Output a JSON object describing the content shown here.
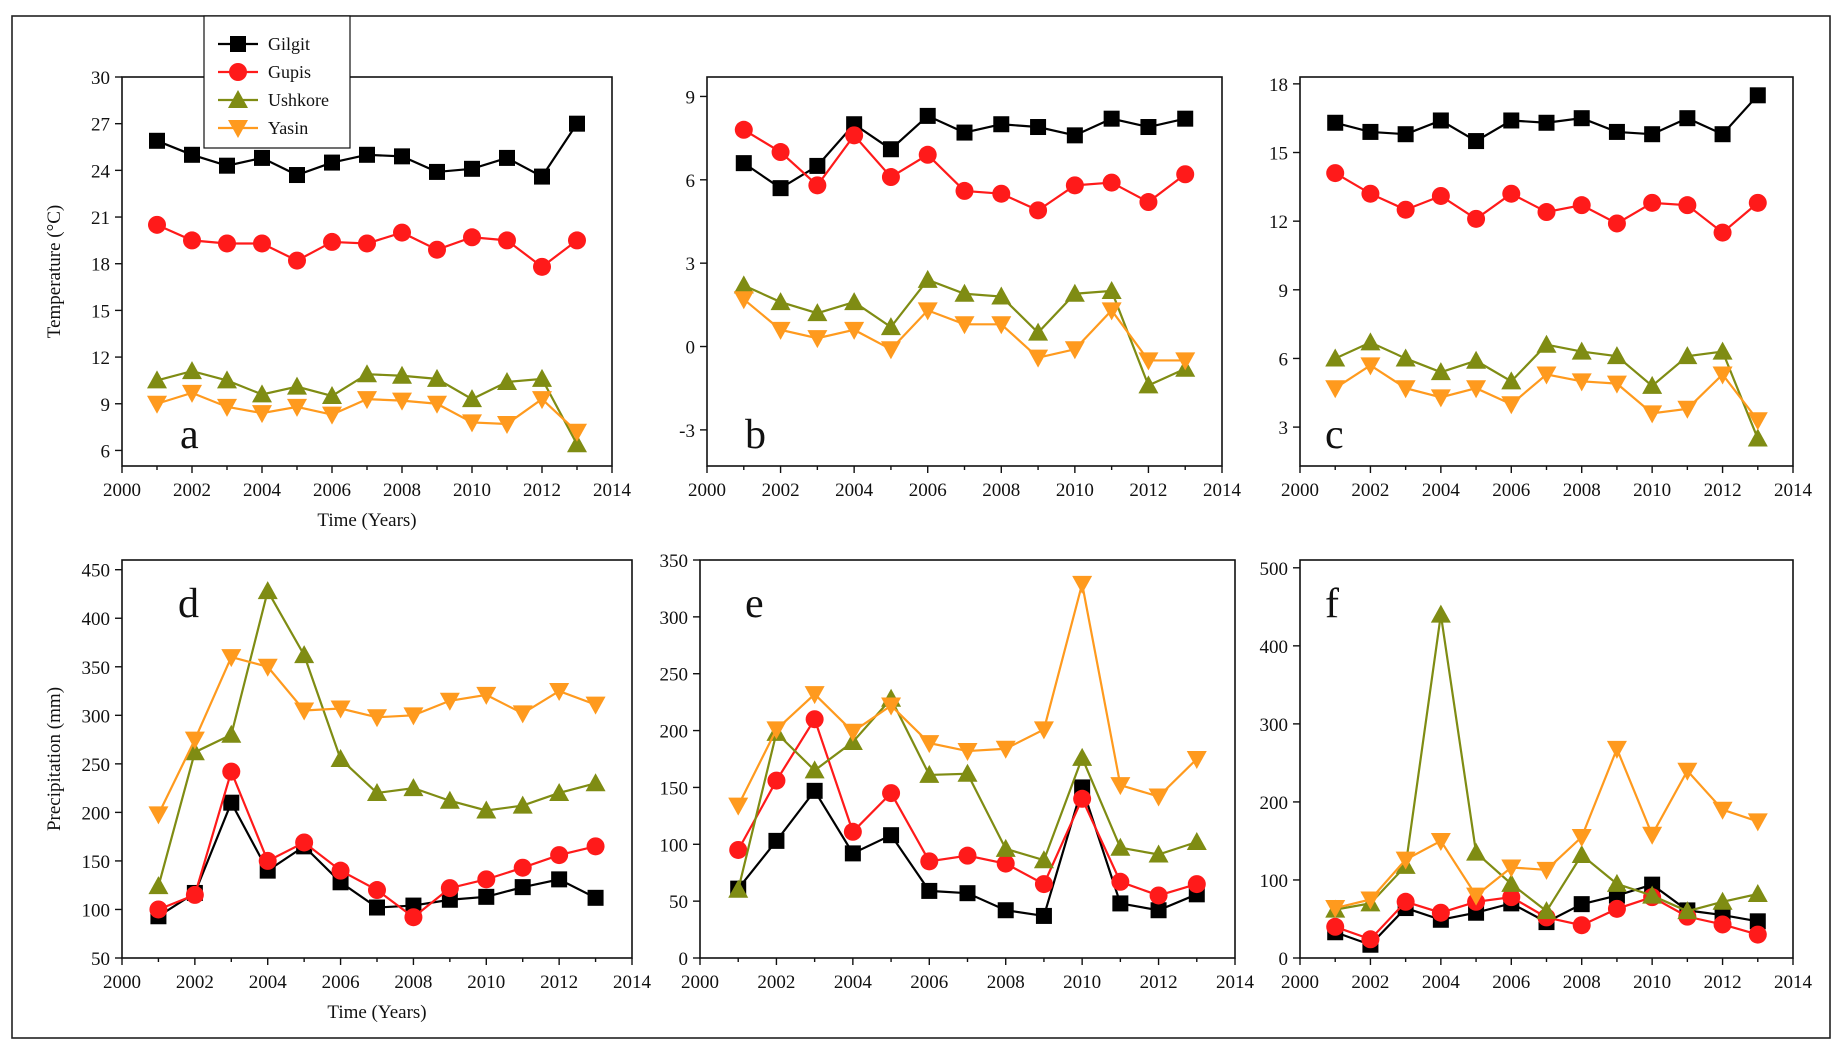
{
  "colors": {
    "Gilgit": "#000000",
    "Gupis": "#ff1a1a",
    "Ushkore": "#7f8c13",
    "Yasin": "#ff9a1e"
  },
  "markers": {
    "Gilgit": "square",
    "Gupis": "circle",
    "Ushkore": "triangle-up",
    "Yasin": "triangle-down"
  },
  "legend": [
    "Gilgit",
    "Gupis",
    "Ushkore",
    "Yasin"
  ],
  "chart_data": [
    {
      "id": "a",
      "type": "line",
      "panel_label": "a",
      "xlabel": "Time (Years)",
      "ylabel": "Temperature (°C)",
      "xlim": [
        2000,
        2014
      ],
      "ylim": [
        5,
        30
      ],
      "xticks": [
        "2000",
        "2002",
        "2004",
        "2006",
        "2008",
        "2010",
        "2012",
        "2014"
      ],
      "yticks": [
        "6",
        "9",
        "12",
        "15",
        "18",
        "21",
        "24",
        "27",
        "30"
      ],
      "x": [
        2001,
        2002,
        2003,
        2004,
        2005,
        2006,
        2007,
        2008,
        2009,
        2010,
        2011,
        2012,
        2013
      ],
      "series": [
        {
          "name": "Gilgit",
          "values": [
            25.9,
            25.0,
            24.3,
            24.8,
            23.7,
            24.5,
            25.0,
            24.9,
            23.9,
            24.1,
            24.8,
            23.6,
            27.0
          ]
        },
        {
          "name": "Gupis",
          "values": [
            20.5,
            19.5,
            19.3,
            19.3,
            18.2,
            19.4,
            19.3,
            20.0,
            18.9,
            19.7,
            19.5,
            17.8,
            19.5
          ]
        },
        {
          "name": "Ushkore",
          "values": [
            10.5,
            11.1,
            10.5,
            9.6,
            10.1,
            9.5,
            10.9,
            10.8,
            10.6,
            9.3,
            10.4,
            10.6,
            6.4
          ]
        },
        {
          "name": "Yasin",
          "values": [
            9.0,
            9.7,
            8.8,
            8.4,
            8.8,
            8.3,
            9.3,
            9.2,
            9.0,
            7.8,
            7.7,
            9.3,
            7.2
          ]
        }
      ]
    },
    {
      "id": "b",
      "type": "line",
      "panel_label": "b",
      "xlabel": "",
      "ylabel": "",
      "xlim": [
        2000,
        2014
      ],
      "ylim": [
        -4.3,
        9.7
      ],
      "xticks": [
        "2000",
        "2002",
        "2004",
        "2006",
        "2008",
        "2010",
        "2012",
        "2014"
      ],
      "yticks": [
        "-3",
        "0",
        "3",
        "6",
        "9"
      ],
      "x": [
        2001,
        2002,
        2003,
        2004,
        2005,
        2006,
        2007,
        2008,
        2009,
        2010,
        2011,
        2012,
        2013
      ],
      "series": [
        {
          "name": "Gilgit",
          "values": [
            6.6,
            5.7,
            6.5,
            8.0,
            7.1,
            8.3,
            7.7,
            8.0,
            7.9,
            7.6,
            8.2,
            7.9,
            8.2
          ]
        },
        {
          "name": "Gupis",
          "values": [
            7.8,
            7.0,
            5.8,
            7.6,
            6.1,
            6.9,
            5.6,
            5.5,
            4.9,
            5.8,
            5.9,
            5.2,
            6.2
          ]
        },
        {
          "name": "Ushkore",
          "values": [
            2.2,
            1.6,
            1.2,
            1.6,
            0.7,
            2.4,
            1.9,
            1.8,
            0.5,
            1.9,
            2.0,
            -1.4,
            -0.8
          ]
        },
        {
          "name": "Yasin",
          "values": [
            1.7,
            0.6,
            0.3,
            0.6,
            -0.1,
            1.3,
            0.8,
            0.8,
            -0.4,
            -0.1,
            1.3,
            -0.5,
            -0.5
          ]
        }
      ]
    },
    {
      "id": "c",
      "type": "line",
      "panel_label": "c",
      "xlabel": "",
      "ylabel": "",
      "xlim": [
        2000,
        2014
      ],
      "ylim": [
        1.3,
        18.3
      ],
      "xticks": [
        "2000",
        "2002",
        "2004",
        "2006",
        "2008",
        "2010",
        "2012",
        "2014"
      ],
      "yticks": [
        "3",
        "6",
        "9",
        "12",
        "15",
        "18"
      ],
      "x": [
        2001,
        2002,
        2003,
        2004,
        2005,
        2006,
        2007,
        2008,
        2009,
        2010,
        2011,
        2012,
        2013
      ],
      "series": [
        {
          "name": "Gilgit",
          "values": [
            16.3,
            15.9,
            15.8,
            16.4,
            15.5,
            16.4,
            16.3,
            16.5,
            15.9,
            15.8,
            16.5,
            15.8,
            17.5
          ]
        },
        {
          "name": "Gupis",
          "values": [
            14.1,
            13.2,
            12.5,
            13.1,
            12.1,
            13.2,
            12.4,
            12.7,
            11.9,
            12.8,
            12.7,
            11.5,
            12.8
          ]
        },
        {
          "name": "Ushkore",
          "values": [
            6.0,
            6.7,
            6.0,
            5.4,
            5.9,
            5.0,
            6.6,
            6.3,
            6.1,
            4.8,
            6.1,
            6.3,
            2.5
          ]
        },
        {
          "name": "Yasin",
          "values": [
            4.7,
            5.7,
            4.7,
            4.3,
            4.7,
            4.0,
            5.3,
            5.0,
            4.9,
            3.6,
            3.8,
            5.3,
            3.3
          ]
        }
      ]
    },
    {
      "id": "d",
      "type": "line",
      "panel_label": "d",
      "xlabel": "Time (Years)",
      "ylabel": "Precipitation (mm)",
      "xlim": [
        2000,
        2014
      ],
      "ylim": [
        50,
        460
      ],
      "xticks": [
        "2000",
        "2002",
        "2004",
        "2006",
        "2008",
        "2010",
        "2012",
        "2014"
      ],
      "yticks": [
        "50",
        "100",
        "150",
        "200",
        "250",
        "300",
        "350",
        "400",
        "450"
      ],
      "x": [
        2001,
        2002,
        2003,
        2004,
        2005,
        2006,
        2007,
        2008,
        2009,
        2010,
        2011,
        2012,
        2013
      ],
      "series": [
        {
          "name": "Gilgit",
          "values": [
            93,
            117,
            210,
            140,
            165,
            128,
            102,
            104,
            110,
            113,
            123,
            131,
            112
          ]
        },
        {
          "name": "Gupis",
          "values": [
            100,
            115,
            242,
            150,
            169,
            140,
            120,
            92,
            122,
            131,
            143,
            156,
            165
          ]
        },
        {
          "name": "Ushkore",
          "values": [
            124,
            262,
            280,
            428,
            362,
            255,
            220,
            225,
            212,
            202,
            207,
            220,
            230
          ]
        },
        {
          "name": "Yasin",
          "values": [
            198,
            275,
            360,
            350,
            305,
            307,
            298,
            300,
            315,
            321,
            302,
            325,
            311
          ]
        }
      ]
    },
    {
      "id": "e",
      "type": "line",
      "panel_label": "e",
      "xlabel": "",
      "ylabel": "",
      "xlim": [
        2000,
        2014
      ],
      "ylim": [
        0,
        350
      ],
      "xticks": [
        "2000",
        "2002",
        "2004",
        "2006",
        "2008",
        "2010",
        "2012",
        "2014"
      ],
      "yticks": [
        "0",
        "50",
        "100",
        "150",
        "200",
        "250",
        "300",
        "350"
      ],
      "x": [
        2001,
        2002,
        2003,
        2004,
        2005,
        2006,
        2007,
        2008,
        2009,
        2010,
        2011,
        2012,
        2013
      ],
      "series": [
        {
          "name": "Gilgit",
          "values": [
            61,
            103,
            147,
            92,
            108,
            59,
            57,
            42,
            37,
            150,
            48,
            42,
            56
          ]
        },
        {
          "name": "Gupis",
          "values": [
            95,
            156,
            210,
            111,
            145,
            85,
            90,
            83,
            65,
            140,
            67,
            55,
            65
          ]
        },
        {
          "name": "Ushkore",
          "values": [
            60,
            198,
            165,
            190,
            228,
            161,
            162,
            96,
            86,
            176,
            97,
            91,
            102
          ]
        },
        {
          "name": "Yasin",
          "values": [
            134,
            201,
            232,
            199,
            222,
            189,
            182,
            184,
            201,
            329,
            152,
            142,
            175
          ]
        }
      ]
    },
    {
      "id": "f",
      "type": "line",
      "panel_label": "f",
      "xlabel": "",
      "ylabel": "",
      "xlim": [
        2000,
        2014
      ],
      "ylim": [
        0,
        510
      ],
      "xticks": [
        "2000",
        "2002",
        "2004",
        "2006",
        "2008",
        "2010",
        "2012",
        "2014"
      ],
      "yticks": [
        "0",
        "100",
        "200",
        "300",
        "400",
        "500"
      ],
      "x": [
        2001,
        2002,
        2003,
        2004,
        2005,
        2006,
        2007,
        2008,
        2009,
        2010,
        2011,
        2012,
        2013
      ],
      "series": [
        {
          "name": "Gilgit",
          "values": [
            33,
            17,
            64,
            49,
            58,
            70,
            46,
            69,
            80,
            94,
            61,
            55,
            47
          ]
        },
        {
          "name": "Gupis",
          "values": [
            40,
            24,
            72,
            58,
            72,
            78,
            52,
            42,
            63,
            78,
            53,
            43,
            30
          ]
        },
        {
          "name": "Ushkore",
          "values": [
            62,
            70,
            118,
            440,
            135,
            95,
            60,
            132,
            95,
            80,
            60,
            72,
            82
          ]
        },
        {
          "name": "Yasin",
          "values": [
            64,
            75,
            126,
            150,
            80,
            116,
            113,
            155,
            268,
            158,
            240,
            190,
            175
          ]
        }
      ]
    }
  ]
}
